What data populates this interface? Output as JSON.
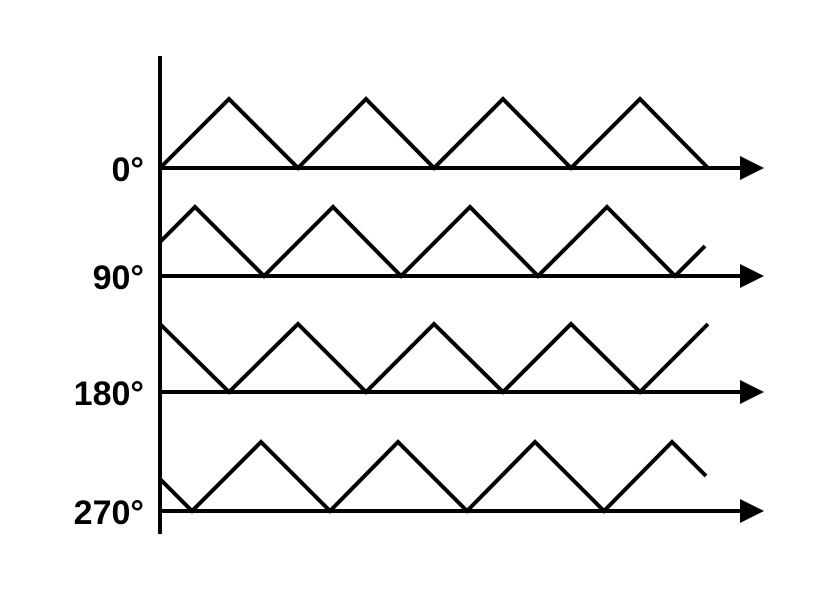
{
  "diagram": {
    "rows": [
      {
        "label": "0°"
      },
      {
        "label": "90°"
      },
      {
        "label": "180°"
      },
      {
        "label": "270°"
      }
    ]
  }
}
